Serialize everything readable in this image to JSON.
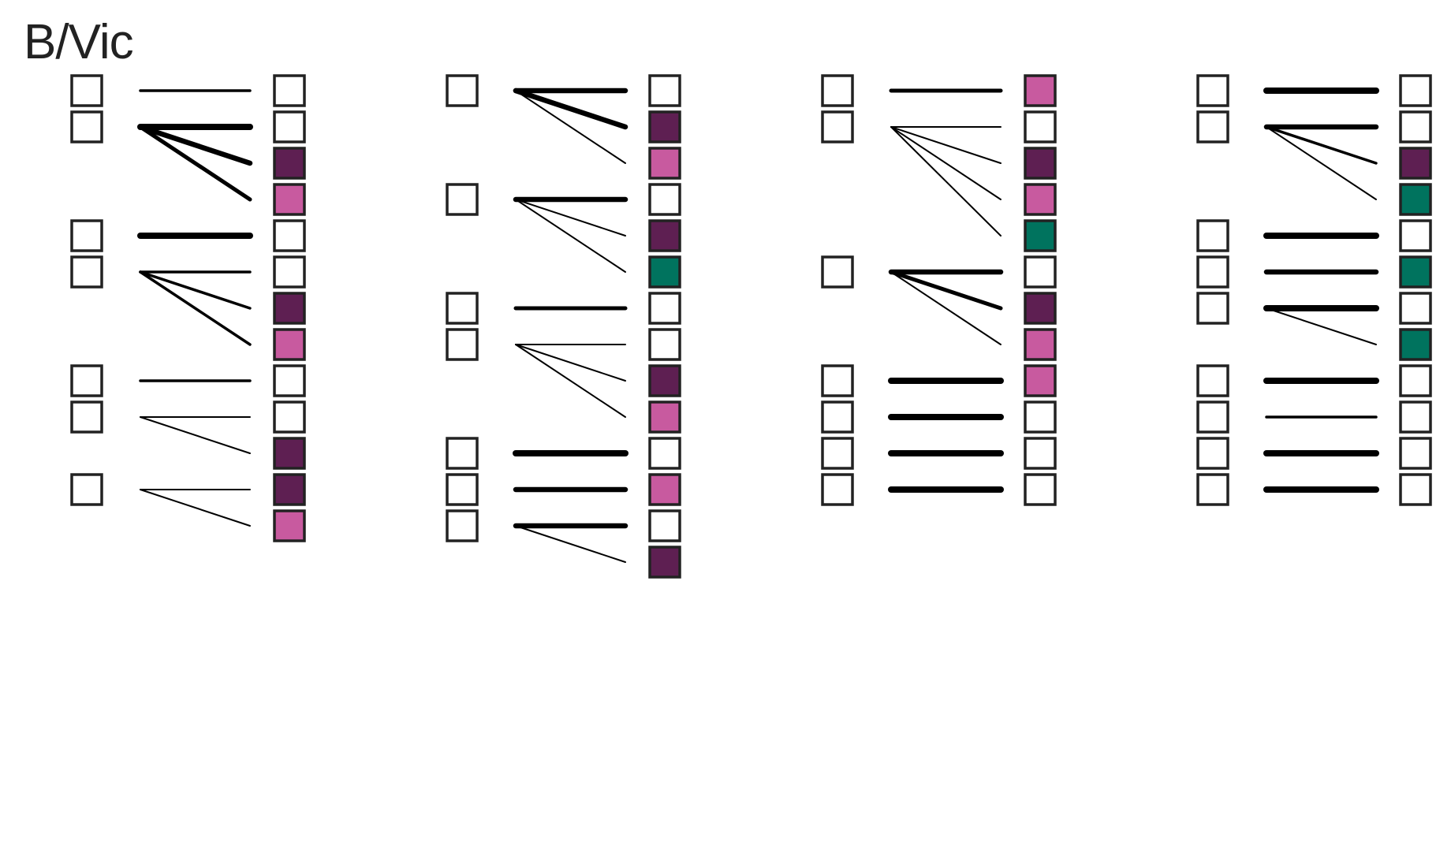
{
  "title": "B/Vic",
  "colors": {
    "none": "#ffffff",
    "purple": "#5e1f52",
    "pink": "#c85a9f",
    "teal": "#00735e",
    "stroke": "#222222",
    "line": "#000000"
  },
  "columns": [
    {
      "groups": [
        {
          "targets": [
            {
              "color": "none",
              "weight": 2
            }
          ]
        },
        {
          "targets": [
            {
              "color": "none",
              "weight": 5
            },
            {
              "color": "purple",
              "weight": 4
            },
            {
              "color": "pink",
              "weight": 3
            }
          ]
        },
        {
          "targets": [
            {
              "color": "none",
              "weight": 5
            }
          ]
        },
        {
          "targets": [
            {
              "color": "none",
              "weight": 2
            },
            {
              "color": "purple",
              "weight": 2
            },
            {
              "color": "pink",
              "weight": 2
            }
          ]
        },
        {
          "targets": [
            {
              "color": "none",
              "weight": 2
            }
          ]
        },
        {
          "targets": [
            {
              "color": "none",
              "weight": 1
            },
            {
              "color": "purple",
              "weight": 1
            }
          ]
        },
        {
          "targets": [
            {
              "color": "purple",
              "weight": 1
            },
            {
              "color": "pink",
              "weight": 1
            }
          ]
        }
      ]
    },
    {
      "groups": [
        {
          "targets": [
            {
              "color": "none",
              "weight": 4
            },
            {
              "color": "purple",
              "weight": 4
            },
            {
              "color": "pink",
              "weight": 1
            }
          ]
        },
        {
          "targets": [
            {
              "color": "none",
              "weight": 4
            },
            {
              "color": "purple",
              "weight": 1
            },
            {
              "color": "teal",
              "weight": 1
            }
          ]
        },
        {
          "targets": [
            {
              "color": "none",
              "weight": 3
            }
          ]
        },
        {
          "targets": [
            {
              "color": "none",
              "weight": 1
            },
            {
              "color": "purple",
              "weight": 1
            },
            {
              "color": "pink",
              "weight": 1
            }
          ]
        },
        {
          "targets": [
            {
              "color": "none",
              "weight": 5
            }
          ]
        },
        {
          "targets": [
            {
              "color": "pink",
              "weight": 4
            }
          ]
        },
        {
          "targets": [
            {
              "color": "none",
              "weight": 4
            },
            {
              "color": "purple",
              "weight": 1
            }
          ]
        }
      ]
    },
    {
      "groups": [
        {
          "targets": [
            {
              "color": "pink",
              "weight": 3
            }
          ]
        },
        {
          "targets": [
            {
              "color": "none",
              "weight": 1
            },
            {
              "color": "purple",
              "weight": 1
            },
            {
              "color": "pink",
              "weight": 1
            },
            {
              "color": "teal",
              "weight": 1
            }
          ]
        },
        {
          "targets": [
            {
              "color": "none",
              "weight": 4
            },
            {
              "color": "purple",
              "weight": 3
            },
            {
              "color": "pink",
              "weight": 1
            }
          ]
        },
        {
          "targets": [
            {
              "color": "pink",
              "weight": 5
            }
          ]
        },
        {
          "targets": [
            {
              "color": "none",
              "weight": 5
            }
          ]
        },
        {
          "targets": [
            {
              "color": "none",
              "weight": 5
            }
          ]
        },
        {
          "targets": [
            {
              "color": "none",
              "weight": 5
            }
          ]
        }
      ]
    },
    {
      "groups": [
        {
          "targets": [
            {
              "color": "none",
              "weight": 5
            }
          ]
        },
        {
          "targets": [
            {
              "color": "none",
              "weight": 4
            },
            {
              "color": "purple",
              "weight": 2
            },
            {
              "color": "teal",
              "weight": 1
            }
          ]
        },
        {
          "targets": [
            {
              "color": "none",
              "weight": 5
            }
          ]
        },
        {
          "targets": [
            {
              "color": "teal",
              "weight": 4
            }
          ]
        },
        {
          "targets": [
            {
              "color": "none",
              "weight": 5
            },
            {
              "color": "teal",
              "weight": 1
            }
          ]
        },
        {
          "targets": [
            {
              "color": "none",
              "weight": 5
            }
          ]
        },
        {
          "targets": [
            {
              "color": "none",
              "weight": 2
            }
          ]
        },
        {
          "targets": [
            {
              "color": "none",
              "weight": 5
            }
          ]
        },
        {
          "targets": [
            {
              "color": "none",
              "weight": 5
            }
          ]
        }
      ]
    }
  ]
}
